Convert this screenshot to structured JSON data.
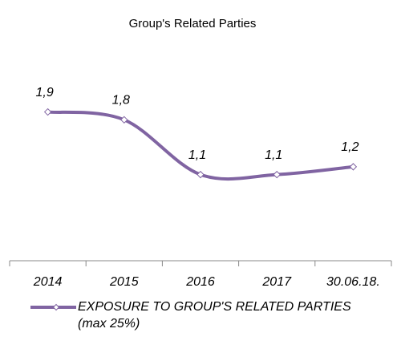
{
  "chart_data": {
    "type": "line",
    "title": "Group's Related Parties",
    "categories": [
      "2014",
      "2015",
      "2016",
      "2017",
      "30.06.18."
    ],
    "series": [
      {
        "name": "EXPOSURE TO GROUP'S RELATED PARTIES  (max 25%)",
        "color": "#8064a2",
        "values": [
          1.9,
          1.8,
          1.1,
          1.1,
          1.2
        ],
        "value_labels": [
          "1,9",
          "1,8",
          "1,1",
          "1,1",
          "1,2"
        ]
      }
    ],
    "ylim": [
      0,
      2.5
    ]
  }
}
